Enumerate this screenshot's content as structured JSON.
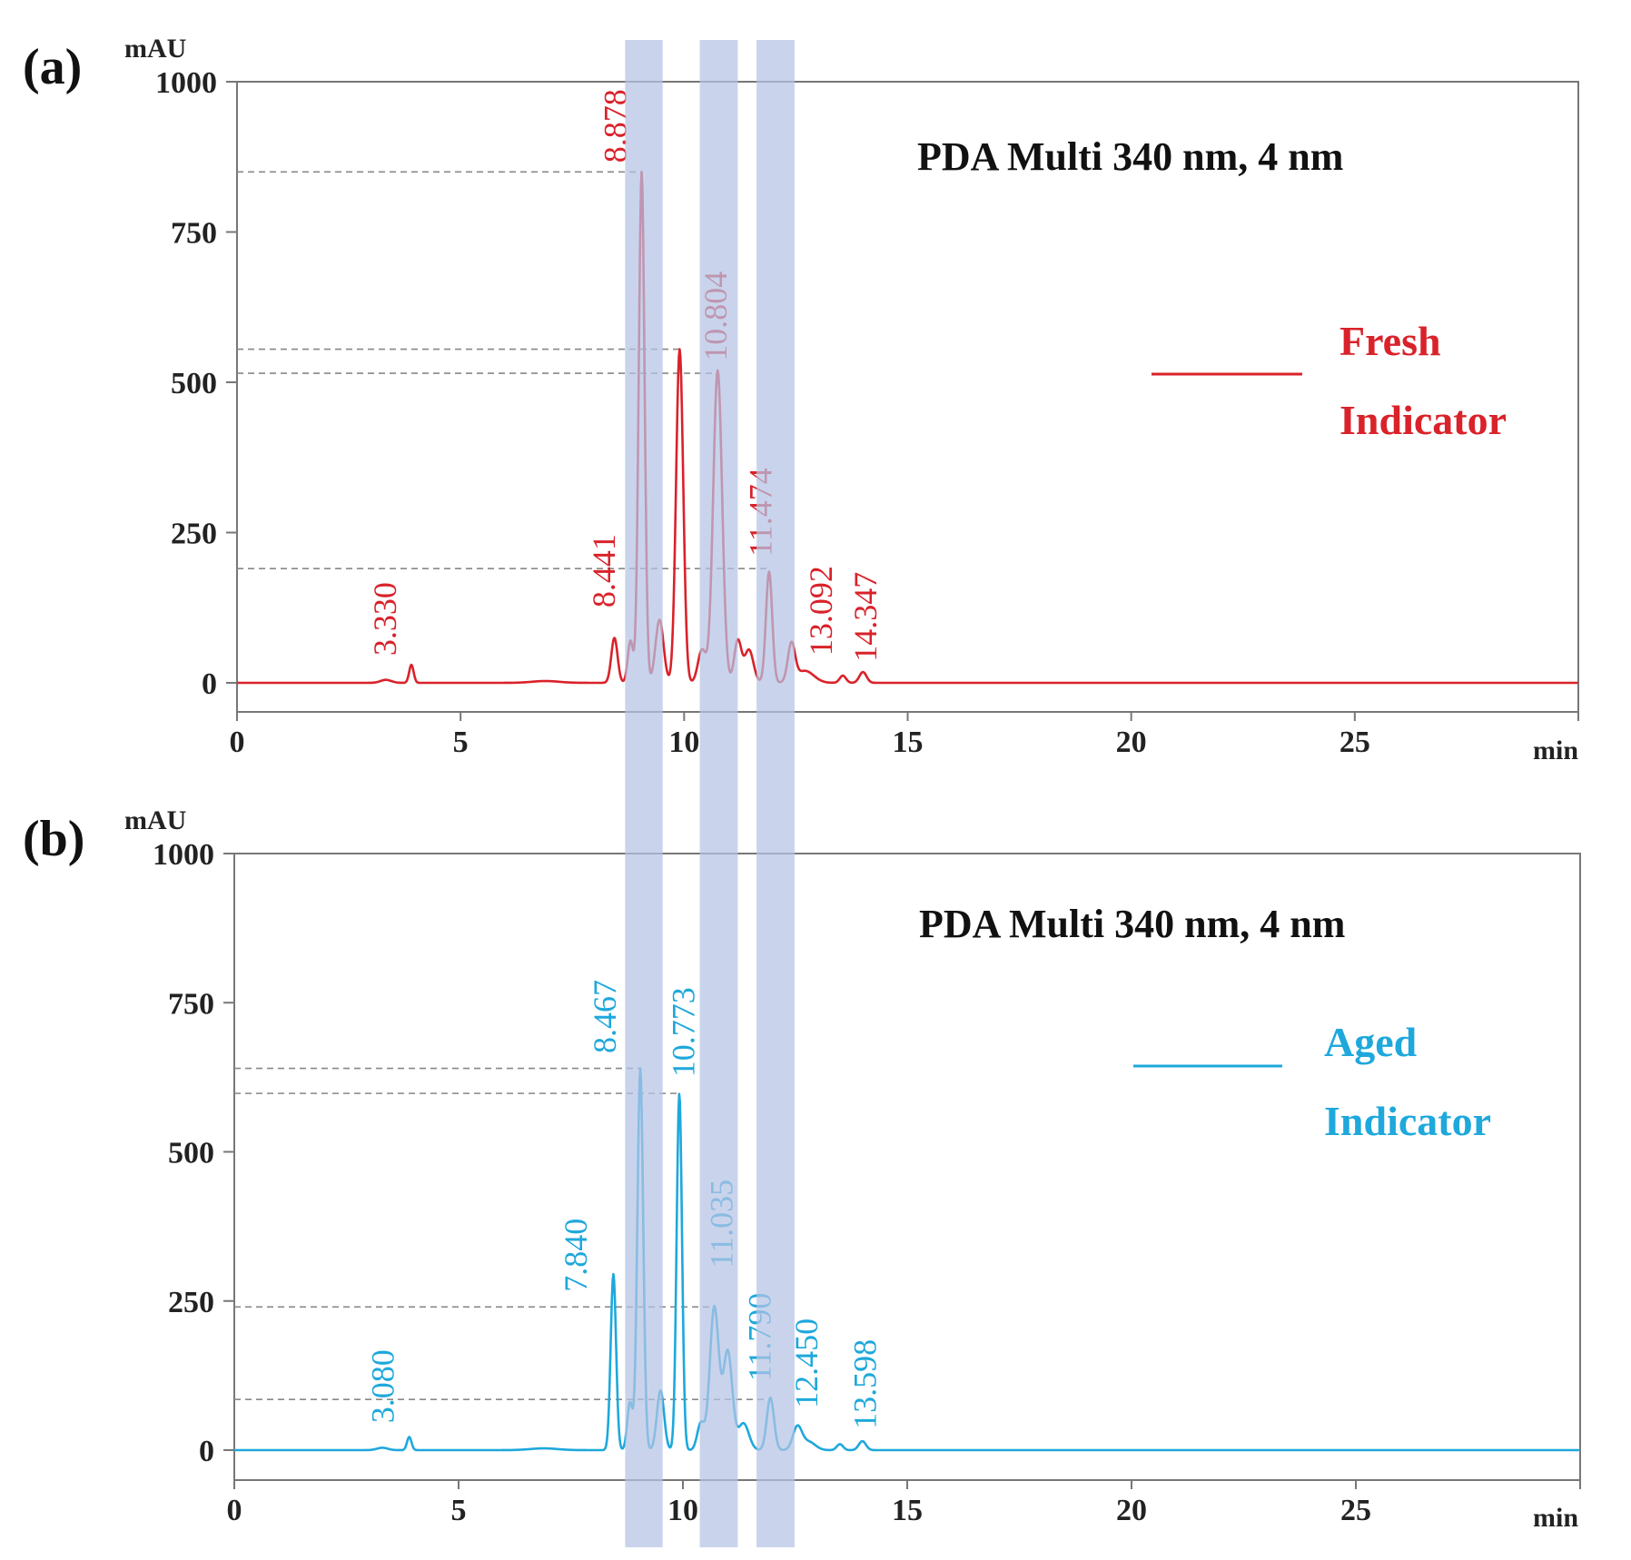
{
  "colors": {
    "fresh": "#d9222a",
    "aged": "#1ea8dc",
    "band": "#b4c4e4",
    "axis": "#777777"
  },
  "chart_data": [
    {
      "type": "line",
      "panel_label": "(a)",
      "title": "PDA Multi 340 nm, 4 nm",
      "ylabel": "mAU",
      "xlabel": "min",
      "xlim": [
        0,
        30
      ],
      "ylim": [
        -50,
        1000
      ],
      "xticks": [
        0,
        5,
        10,
        15,
        20,
        25
      ],
      "yticks": [
        0,
        250,
        500,
        750,
        1000
      ],
      "legend": [
        "Fresh",
        "Indicator"
      ],
      "color_key": "fresh",
      "series": [
        {
          "name": "Fresh Indicator",
          "peaks": [
            {
              "rt": 3.33,
              "height": 5,
              "width": 0.12
            },
            {
              "rt": 3.9,
              "height": 30,
              "width": 0.05
            },
            {
              "rt": 6.9,
              "height": 3,
              "width": 0.3
            },
            {
              "rt": 8.441,
              "height": 75,
              "width": 0.07
            },
            {
              "rt": 8.8,
              "height": 70,
              "width": 0.06
            },
            {
              "rt": 9.05,
              "height": 850,
              "width": 0.065
            },
            {
              "rt": 9.45,
              "height": 105,
              "width": 0.09
            },
            {
              "rt": 9.9,
              "height": 555,
              "width": 0.08
            },
            {
              "rt": 10.4,
              "height": 55,
              "width": 0.09
            },
            {
              "rt": 10.75,
              "height": 520,
              "width": 0.1
            },
            {
              "rt": 11.2,
              "height": 70,
              "width": 0.08
            },
            {
              "rt": 11.45,
              "height": 55,
              "width": 0.1
            },
            {
              "rt": 11.9,
              "height": 185,
              "width": 0.07
            },
            {
              "rt": 12.4,
              "height": 62,
              "width": 0.08
            },
            {
              "rt": 12.7,
              "height": 20,
              "width": 0.2
            },
            {
              "rt": 13.55,
              "height": 12,
              "width": 0.07
            },
            {
              "rt": 14.0,
              "height": 18,
              "width": 0.08
            }
          ]
        }
      ],
      "peak_labels": [
        {
          "text": "3.330",
          "rt": 3.55,
          "y": 30
        },
        {
          "text": "8.441",
          "rt": 8.45,
          "y": 110
        },
        {
          "text": "8.878",
          "rt": 8.7,
          "y": 850
        },
        {
          "text": "10.804",
          "rt": 10.95,
          "y": 520
        },
        {
          "text": "11.474",
          "rt": 11.95,
          "y": 195
        },
        {
          "text": "13.092",
          "rt": 13.3,
          "y": 30
        },
        {
          "text": "14.347",
          "rt": 14.3,
          "y": 20
        }
      ],
      "guide_levels": [
        850,
        555,
        515,
        190
      ]
    },
    {
      "type": "line",
      "panel_label": "(b)",
      "title": "PDA Multi 340 nm, 4 nm",
      "ylabel": "mAU",
      "xlabel": "min",
      "xlim": [
        0,
        30
      ],
      "ylim": [
        -50,
        1000
      ],
      "xticks": [
        0,
        5,
        10,
        15,
        20,
        25
      ],
      "yticks": [
        0,
        250,
        500,
        750,
        1000
      ],
      "legend": [
        "Aged",
        "Indicator"
      ],
      "color_key": "aged",
      "series": [
        {
          "name": "Aged Indicator",
          "peaks": [
            {
              "rt": 3.3,
              "height": 4,
              "width": 0.12
            },
            {
              "rt": 3.9,
              "height": 22,
              "width": 0.05
            },
            {
              "rt": 6.9,
              "height": 3,
              "width": 0.3
            },
            {
              "rt": 8.45,
              "height": 295,
              "width": 0.06
            },
            {
              "rt": 8.82,
              "height": 80,
              "width": 0.06
            },
            {
              "rt": 9.05,
              "height": 640,
              "width": 0.065
            },
            {
              "rt": 9.5,
              "height": 100,
              "width": 0.08
            },
            {
              "rt": 9.92,
              "height": 598,
              "width": 0.06
            },
            {
              "rt": 10.4,
              "height": 45,
              "width": 0.08
            },
            {
              "rt": 10.7,
              "height": 240,
              "width": 0.1
            },
            {
              "rt": 11.0,
              "height": 165,
              "width": 0.1
            },
            {
              "rt": 11.35,
              "height": 45,
              "width": 0.12
            },
            {
              "rt": 11.95,
              "height": 88,
              "width": 0.08
            },
            {
              "rt": 12.55,
              "height": 38,
              "width": 0.1
            },
            {
              "rt": 12.8,
              "height": 14,
              "width": 0.15
            },
            {
              "rt": 13.5,
              "height": 10,
              "width": 0.07
            },
            {
              "rt": 14.0,
              "height": 15,
              "width": 0.08
            }
          ]
        }
      ],
      "peak_labels": [
        {
          "text": "3.080",
          "rt": 3.55,
          "y": 30
        },
        {
          "text": "7.840",
          "rt": 7.85,
          "y": 250
        },
        {
          "text": "8.467",
          "rt": 8.5,
          "y": 650
        },
        {
          "text": "10.773",
          "rt": 10.25,
          "y": 610
        },
        {
          "text": "11.035",
          "rt": 11.1,
          "y": 290
        },
        {
          "text": "11.790",
          "rt": 11.95,
          "y": 100
        },
        {
          "text": "12.450",
          "rt": 13.0,
          "y": 55
        },
        {
          "text": "13.598",
          "rt": 14.3,
          "y": 20
        }
      ],
      "guide_levels": [
        640,
        598,
        240,
        85
      ]
    }
  ],
  "highlight_bands": [
    {
      "from": 8.68,
      "to": 9.52
    },
    {
      "from": 10.35,
      "to": 11.2
    },
    {
      "from": 11.62,
      "to": 12.47
    }
  ]
}
